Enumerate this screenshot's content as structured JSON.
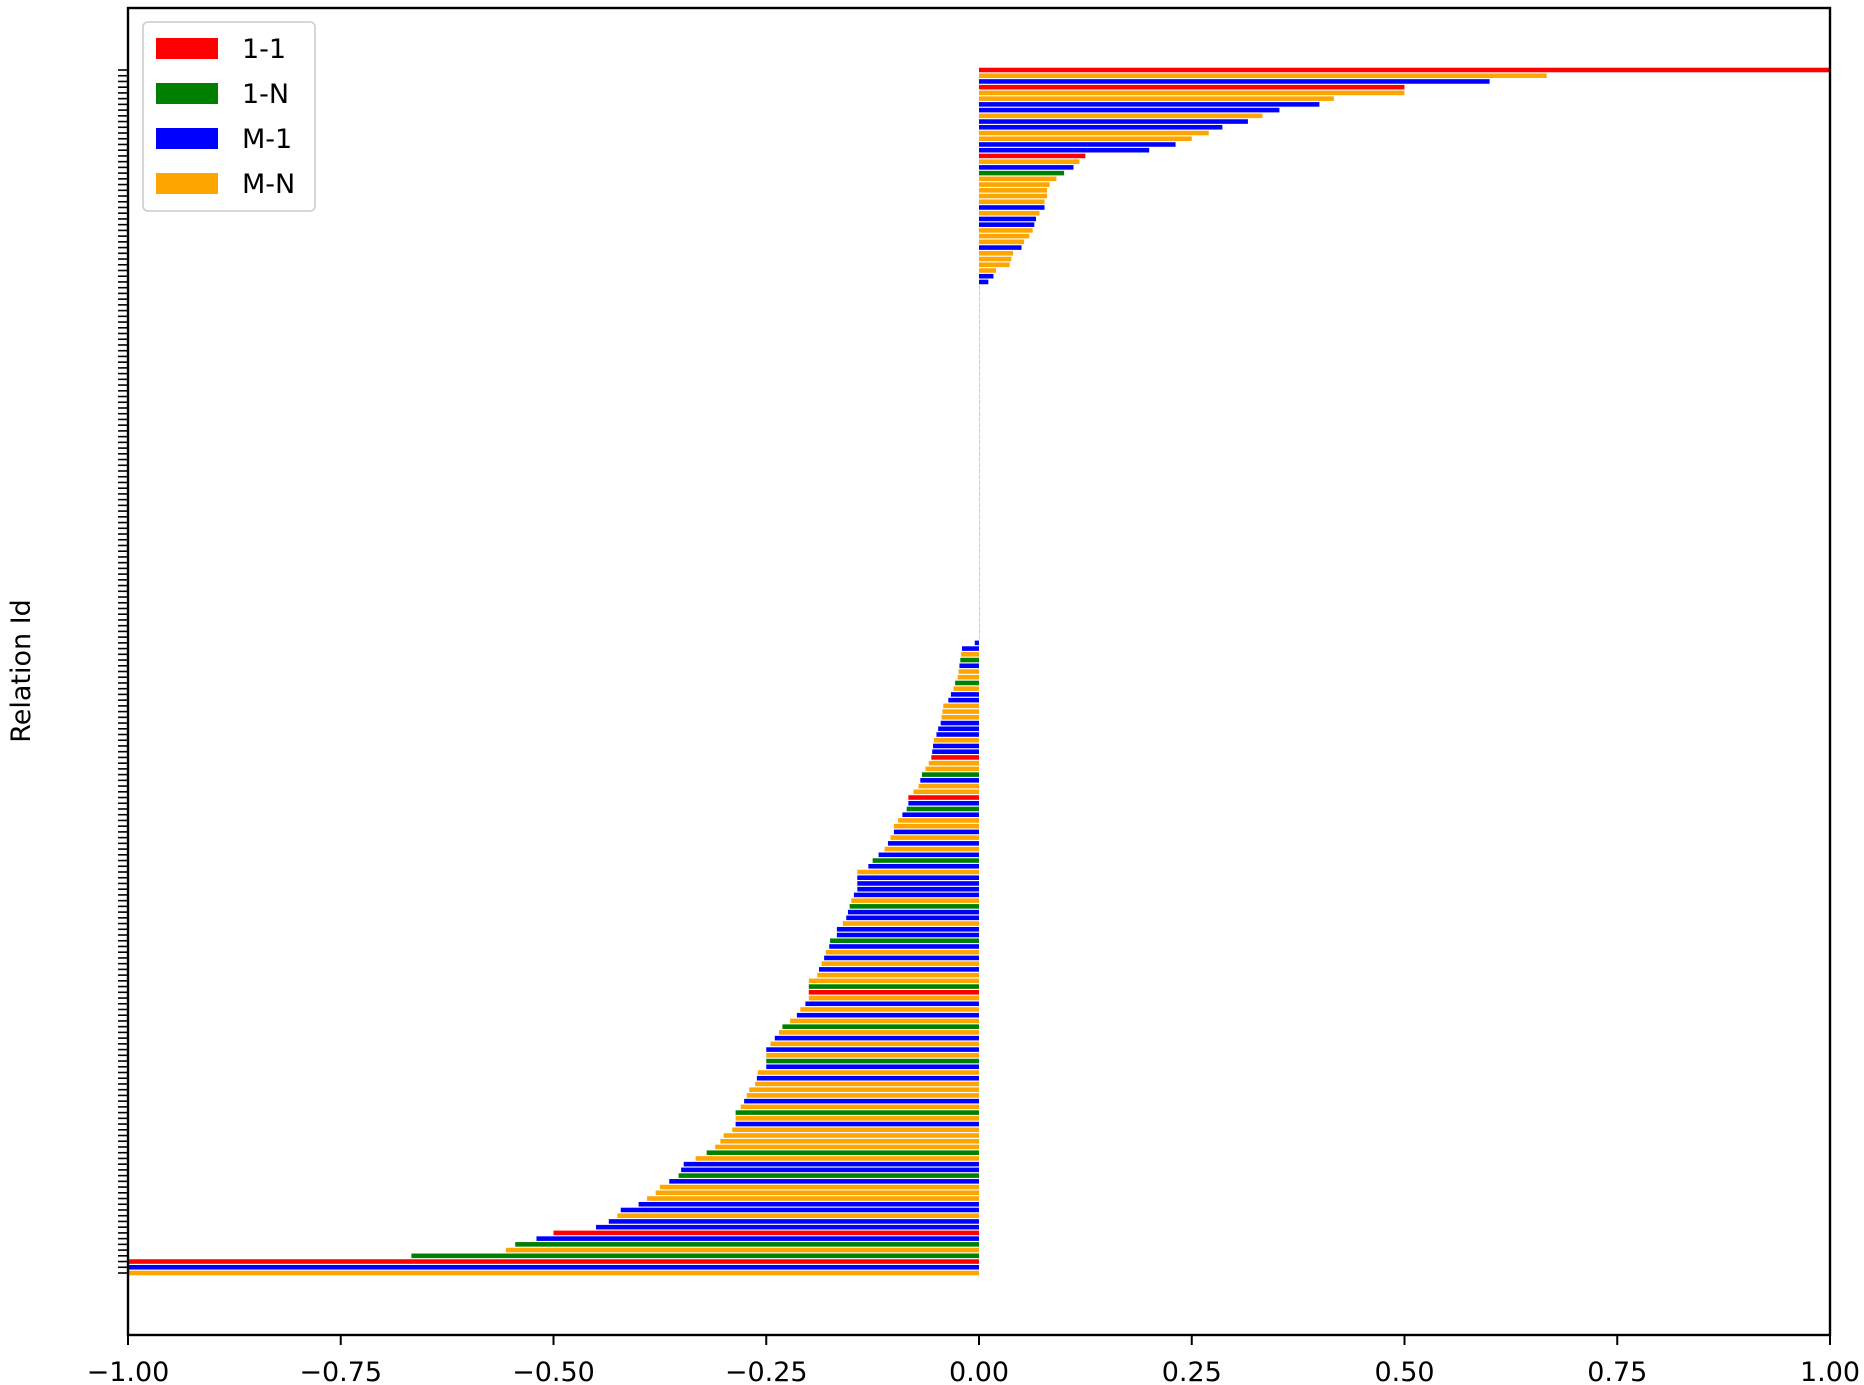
{
  "chart_data": {
    "type": "bar",
    "orientation": "horizontal",
    "title": "",
    "xlabel": "",
    "ylabel": "Relation Id",
    "xlim": [
      -1.0,
      1.0
    ],
    "xticks": [
      "−1.00",
      "−0.75",
      "−0.50",
      "−0.25",
      "0.00",
      "0.25",
      "0.50",
      "0.75",
      "1.00"
    ],
    "grid": false,
    "legend_position": "upper-left",
    "series": [
      {
        "name": "1-1",
        "color": "#ff0000"
      },
      {
        "name": "1-N",
        "color": "#008000"
      },
      {
        "name": "M-1",
        "color": "#0000ff"
      },
      {
        "name": "M-N",
        "color": "#ffa500"
      }
    ],
    "bars": [
      {
        "type": "1-1",
        "value": 1.0
      },
      {
        "type": "M-N",
        "value": 0.667
      },
      {
        "type": "M-1",
        "value": 0.6
      },
      {
        "type": "1-1",
        "value": 0.5
      },
      {
        "type": "M-N",
        "value": 0.5
      },
      {
        "type": "M-N",
        "value": 0.417
      },
      {
        "type": "M-1",
        "value": 0.4
      },
      {
        "type": "M-1",
        "value": 0.353
      },
      {
        "type": "M-N",
        "value": 0.333
      },
      {
        "type": "M-1",
        "value": 0.316
      },
      {
        "type": "M-1",
        "value": 0.286
      },
      {
        "type": "M-N",
        "value": 0.27
      },
      {
        "type": "M-N",
        "value": 0.25
      },
      {
        "type": "M-1",
        "value": 0.231
      },
      {
        "type": "M-1",
        "value": 0.2
      },
      {
        "type": "1-1",
        "value": 0.125
      },
      {
        "type": "M-N",
        "value": 0.118
      },
      {
        "type": "M-1",
        "value": 0.111
      },
      {
        "type": "1-N",
        "value": 0.1
      },
      {
        "type": "M-N",
        "value": 0.091
      },
      {
        "type": "M-N",
        "value": 0.083
      },
      {
        "type": "M-N",
        "value": 0.08
      },
      {
        "type": "M-N",
        "value": 0.08
      },
      {
        "type": "M-N",
        "value": 0.077
      },
      {
        "type": "M-1",
        "value": 0.077
      },
      {
        "type": "M-N",
        "value": 0.071
      },
      {
        "type": "M-1",
        "value": 0.067
      },
      {
        "type": "M-1",
        "value": 0.065
      },
      {
        "type": "M-N",
        "value": 0.063
      },
      {
        "type": "M-N",
        "value": 0.059
      },
      {
        "type": "M-N",
        "value": 0.053
      },
      {
        "type": "M-1",
        "value": 0.05
      },
      {
        "type": "M-N",
        "value": 0.04
      },
      {
        "type": "M-N",
        "value": 0.038
      },
      {
        "type": "M-N",
        "value": 0.036
      },
      {
        "type": "M-N",
        "value": 0.02
      },
      {
        "type": "M-1",
        "value": 0.017
      },
      {
        "type": "M-1",
        "value": 0.011
      },
      {
        "type": "M-N",
        "value": 0.0
      },
      {
        "type": "M-N",
        "value": 0.0
      },
      {
        "type": "M-N",
        "value": 0.0
      },
      {
        "type": "M-N",
        "value": 0.0
      },
      {
        "type": "M-N",
        "value": 0.0
      },
      {
        "type": "M-N",
        "value": 0.0
      },
      {
        "type": "M-N",
        "value": 0.0
      },
      {
        "type": "M-N",
        "value": 0.0
      },
      {
        "type": "M-N",
        "value": 0.0
      },
      {
        "type": "M-N",
        "value": 0.0
      },
      {
        "type": "M-N",
        "value": 0.0
      },
      {
        "type": "M-N",
        "value": 0.0
      },
      {
        "type": "M-N",
        "value": 0.0
      },
      {
        "type": "M-N",
        "value": 0.0
      },
      {
        "type": "M-N",
        "value": 0.0
      },
      {
        "type": "M-N",
        "value": 0.0
      },
      {
        "type": "M-N",
        "value": 0.0
      },
      {
        "type": "M-N",
        "value": 0.0
      },
      {
        "type": "M-N",
        "value": 0.0
      },
      {
        "type": "M-N",
        "value": 0.0
      },
      {
        "type": "M-N",
        "value": 0.0
      },
      {
        "type": "M-N",
        "value": 0.0
      },
      {
        "type": "M-N",
        "value": 0.0
      },
      {
        "type": "M-N",
        "value": 0.0
      },
      {
        "type": "M-N",
        "value": 0.0
      },
      {
        "type": "M-N",
        "value": 0.0
      },
      {
        "type": "M-N",
        "value": 0.0
      },
      {
        "type": "M-N",
        "value": 0.0
      },
      {
        "type": "M-N",
        "value": 0.0
      },
      {
        "type": "M-N",
        "value": 0.0
      },
      {
        "type": "M-N",
        "value": 0.0
      },
      {
        "type": "M-N",
        "value": 0.0
      },
      {
        "type": "M-N",
        "value": 0.0
      },
      {
        "type": "M-N",
        "value": 0.0
      },
      {
        "type": "M-N",
        "value": 0.0
      },
      {
        "type": "M-N",
        "value": 0.0
      },
      {
        "type": "M-N",
        "value": 0.0
      },
      {
        "type": "M-N",
        "value": 0.0
      },
      {
        "type": "M-N",
        "value": 0.0
      },
      {
        "type": "M-N",
        "value": 0.0
      },
      {
        "type": "M-N",
        "value": 0.0
      },
      {
        "type": "M-N",
        "value": 0.0
      },
      {
        "type": "M-N",
        "value": 0.0
      },
      {
        "type": "M-N",
        "value": 0.0
      },
      {
        "type": "M-N",
        "value": 0.0
      },
      {
        "type": "M-N",
        "value": 0.0
      },
      {
        "type": "M-N",
        "value": 0.0
      },
      {
        "type": "M-N",
        "value": 0.0
      },
      {
        "type": "M-N",
        "value": 0.0
      },
      {
        "type": "M-N",
        "value": 0.0
      },
      {
        "type": "M-N",
        "value": 0.0
      },
      {
        "type": "M-N",
        "value": 0.0
      },
      {
        "type": "M-N",
        "value": 0.0
      },
      {
        "type": "M-N",
        "value": 0.0
      },
      {
        "type": "M-N",
        "value": 0.0
      },
      {
        "type": "M-N",
        "value": 0.0
      },
      {
        "type": "M-N",
        "value": 0.0
      },
      {
        "type": "M-N",
        "value": 0.0
      },
      {
        "type": "M-N",
        "value": 0.0
      },
      {
        "type": "M-N",
        "value": 0.0
      },
      {
        "type": "M-N",
        "value": 0.0
      },
      {
        "type": "M-N",
        "value": 0.0
      },
      {
        "type": "M-1",
        "value": -0.005
      },
      {
        "type": "M-1",
        "value": -0.02
      },
      {
        "type": "M-N",
        "value": -0.021
      },
      {
        "type": "1-N",
        "value": -0.022
      },
      {
        "type": "M-1",
        "value": -0.023
      },
      {
        "type": "M-N",
        "value": -0.024
      },
      {
        "type": "M-N",
        "value": -0.025
      },
      {
        "type": "1-N",
        "value": -0.028
      },
      {
        "type": "M-N",
        "value": -0.03
      },
      {
        "type": "M-1",
        "value": -0.033
      },
      {
        "type": "M-1",
        "value": -0.036
      },
      {
        "type": "M-N",
        "value": -0.042
      },
      {
        "type": "M-N",
        "value": -0.043
      },
      {
        "type": "M-N",
        "value": -0.044
      },
      {
        "type": "M-1",
        "value": -0.045
      },
      {
        "type": "M-1",
        "value": -0.048
      },
      {
        "type": "M-1",
        "value": -0.05
      },
      {
        "type": "M-N",
        "value": -0.053
      },
      {
        "type": "M-1",
        "value": -0.054
      },
      {
        "type": "M-1",
        "value": -0.055
      },
      {
        "type": "1-1",
        "value": -0.056
      },
      {
        "type": "M-N",
        "value": -0.059
      },
      {
        "type": "M-N",
        "value": -0.063
      },
      {
        "type": "1-N",
        "value": -0.067
      },
      {
        "type": "M-1",
        "value": -0.069
      },
      {
        "type": "M-N",
        "value": -0.071
      },
      {
        "type": "M-N",
        "value": -0.077
      },
      {
        "type": "1-1",
        "value": -0.083
      },
      {
        "type": "M-1",
        "value": -0.083
      },
      {
        "type": "1-N",
        "value": -0.085
      },
      {
        "type": "M-1",
        "value": -0.09
      },
      {
        "type": "M-N",
        "value": -0.095
      },
      {
        "type": "M-N",
        "value": -0.1
      },
      {
        "type": "M-1",
        "value": -0.1
      },
      {
        "type": "M-N",
        "value": -0.104
      },
      {
        "type": "M-1",
        "value": -0.107
      },
      {
        "type": "M-N",
        "value": -0.111
      },
      {
        "type": "M-1",
        "value": -0.118
      },
      {
        "type": "1-N",
        "value": -0.125
      },
      {
        "type": "M-1",
        "value": -0.13
      },
      {
        "type": "M-N",
        "value": -0.143
      },
      {
        "type": "M-1",
        "value": -0.143
      },
      {
        "type": "M-1",
        "value": -0.143
      },
      {
        "type": "M-1",
        "value": -0.143
      },
      {
        "type": "M-1",
        "value": -0.147
      },
      {
        "type": "M-N",
        "value": -0.15
      },
      {
        "type": "1-N",
        "value": -0.152
      },
      {
        "type": "M-1",
        "value": -0.154
      },
      {
        "type": "M-1",
        "value": -0.156
      },
      {
        "type": "M-N",
        "value": -0.16
      },
      {
        "type": "M-1",
        "value": -0.167
      },
      {
        "type": "M-1",
        "value": -0.167
      },
      {
        "type": "1-N",
        "value": -0.175
      },
      {
        "type": "M-1",
        "value": -0.176
      },
      {
        "type": "M-N",
        "value": -0.18
      },
      {
        "type": "M-1",
        "value": -0.182
      },
      {
        "type": "M-N",
        "value": -0.185
      },
      {
        "type": "M-1",
        "value": -0.188
      },
      {
        "type": "M-N",
        "value": -0.19
      },
      {
        "type": "M-N",
        "value": -0.2
      },
      {
        "type": "1-N",
        "value": -0.2
      },
      {
        "type": "1-1",
        "value": -0.2
      },
      {
        "type": "M-N",
        "value": -0.2
      },
      {
        "type": "M-1",
        "value": -0.204
      },
      {
        "type": "M-N",
        "value": -0.21
      },
      {
        "type": "M-1",
        "value": -0.214
      },
      {
        "type": "M-N",
        "value": -0.222
      },
      {
        "type": "1-N",
        "value": -0.231
      },
      {
        "type": "M-N",
        "value": -0.235
      },
      {
        "type": "M-1",
        "value": -0.24
      },
      {
        "type": "M-N",
        "value": -0.245
      },
      {
        "type": "M-1",
        "value": -0.25
      },
      {
        "type": "M-N",
        "value": -0.25
      },
      {
        "type": "1-N",
        "value": -0.25
      },
      {
        "type": "M-1",
        "value": -0.25
      },
      {
        "type": "M-N",
        "value": -0.26
      },
      {
        "type": "M-1",
        "value": -0.261
      },
      {
        "type": "M-N",
        "value": -0.263
      },
      {
        "type": "M-N",
        "value": -0.27
      },
      {
        "type": "M-N",
        "value": -0.273
      },
      {
        "type": "M-1",
        "value": -0.276
      },
      {
        "type": "M-N",
        "value": -0.28
      },
      {
        "type": "1-N",
        "value": -0.286
      },
      {
        "type": "M-N",
        "value": -0.286
      },
      {
        "type": "M-1",
        "value": -0.286
      },
      {
        "type": "M-N",
        "value": -0.29
      },
      {
        "type": "M-N",
        "value": -0.3
      },
      {
        "type": "M-N",
        "value": -0.304
      },
      {
        "type": "M-N",
        "value": -0.31
      },
      {
        "type": "1-N",
        "value": -0.32
      },
      {
        "type": "M-N",
        "value": -0.333
      },
      {
        "type": "M-1",
        "value": -0.347
      },
      {
        "type": "M-1",
        "value": -0.35
      },
      {
        "type": "1-N",
        "value": -0.353
      },
      {
        "type": "M-1",
        "value": -0.364
      },
      {
        "type": "M-N",
        "value": -0.375
      },
      {
        "type": "M-N",
        "value": -0.38
      },
      {
        "type": "M-N",
        "value": -0.39
      },
      {
        "type": "M-1",
        "value": -0.4
      },
      {
        "type": "M-1",
        "value": -0.421
      },
      {
        "type": "M-N",
        "value": -0.425
      },
      {
        "type": "M-1",
        "value": -0.435
      },
      {
        "type": "M-1",
        "value": -0.45
      },
      {
        "type": "1-1",
        "value": -0.5
      },
      {
        "type": "M-1",
        "value": -0.52
      },
      {
        "type": "1-N",
        "value": -0.545
      },
      {
        "type": "M-N",
        "value": -0.556
      },
      {
        "type": "1-N",
        "value": -0.667
      },
      {
        "type": "1-1",
        "value": -1.0
      },
      {
        "type": "M-1",
        "value": -1.0
      },
      {
        "type": "M-N",
        "value": -1.0
      }
    ]
  }
}
